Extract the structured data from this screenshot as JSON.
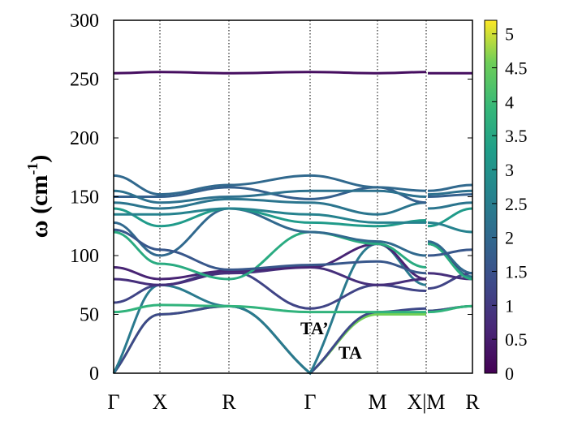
{
  "chart_data": {
    "type": "line",
    "title": "",
    "ylabel": "ω (cm",
    "ylabel_sup": "-1",
    "ylabel_close": ")",
    "ylim": [
      0,
      300
    ],
    "yticks": [
      0,
      50,
      100,
      150,
      200,
      250,
      300
    ],
    "xticks": [
      {
        "label": "Γ",
        "k": 0
      },
      {
        "label": "X",
        "k": 0.57
      },
      {
        "label": "R",
        "k": 1.42
      },
      {
        "label": "Γ",
        "k": 2.42
      },
      {
        "label": "M",
        "k": 3.25
      },
      {
        "label": "X|M",
        "k": 3.85
      },
      {
        "label": "R",
        "k": 4.42
      }
    ],
    "grid": "vertical dotted at high-symmetry points",
    "colorbar": {
      "range": [
        0,
        5.2
      ],
      "ticks": [
        "0",
        "0.5",
        "1",
        "1.5",
        "2",
        "2.5",
        "3",
        "3.5",
        "4",
        "4.5",
        "5"
      ],
      "colormap": "viridis"
    },
    "annotations": [
      {
        "text": "TA’"
      },
      {
        "text": "TA"
      }
    ],
    "bands_note": "values at Γ,X,R,Γ,M,X then M,R; c = colorbar value",
    "bands": [
      {
        "path1": [
          0,
          50,
          57,
          0,
          50,
          50
        ],
        "path2": [
          53,
          57
        ],
        "c": 4.6
      },
      {
        "path1": [
          0,
          50,
          57,
          0,
          52,
          55
        ],
        "path2": [
          53,
          57
        ],
        "c": 1.3
      },
      {
        "path1": [
          0,
          75,
          57,
          0,
          110,
          75
        ],
        "path2": [
          110,
          82
        ],
        "c": 2.4
      },
      {
        "path1": [
          52,
          58,
          57,
          52,
          52,
          52
        ],
        "path2": [
          52,
          57
        ],
        "c": 3.8
      },
      {
        "path1": [
          60,
          75,
          87,
          55,
          75,
          70
        ],
        "path2": [
          72,
          85
        ],
        "c": 1.2
      },
      {
        "path1": [
          80,
          75,
          85,
          90,
          75,
          80
        ],
        "path2": [
          85,
          80
        ],
        "c": 0.8
      },
      {
        "path1": [
          90,
          80,
          87,
          90,
          110,
          80
        ],
        "path2": [
          110,
          85
        ],
        "c": 0.6
      },
      {
        "path1": [
          120,
          93,
          80,
          120,
          110,
          90
        ],
        "path2": [
          110,
          80
        ],
        "c": 3.6
      },
      {
        "path1": [
          128,
          100,
          140,
          120,
          112,
          100
        ],
        "path2": [
          112,
          85
        ],
        "c": 2.0
      },
      {
        "path1": [
          140,
          125,
          140,
          128,
          125,
          130
        ],
        "path2": [
          125,
          140
        ],
        "c": 3.2
      },
      {
        "path1": [
          145,
          140,
          148,
          145,
          135,
          145
        ],
        "path2": [
          140,
          145
        ],
        "c": 2.3
      },
      {
        "path1": [
          150,
          150,
          158,
          148,
          158,
          145
        ],
        "path2": [
          150,
          152
        ],
        "c": 1.8
      },
      {
        "path1": [
          168,
          152,
          160,
          168,
          158,
          155
        ],
        "path2": [
          155,
          160
        ],
        "c": 2.0
      },
      {
        "path1": [
          135,
          135,
          140,
          135,
          128,
          128
        ],
        "path2": [
          128,
          120
        ],
        "c": 2.6
      },
      {
        "path1": [
          155,
          145,
          150,
          155,
          155,
          150
        ],
        "path2": [
          152,
          155
        ],
        "c": 2.2
      },
      {
        "path1": [
          122,
          105,
          88,
          92,
          95,
          85
        ],
        "path2": [
          100,
          105
        ],
        "c": 1.6
      },
      {
        "path1": [
          255,
          256,
          255,
          256,
          255,
          256
        ],
        "path2": [
          255,
          255
        ],
        "c": 0.2
      }
    ]
  }
}
